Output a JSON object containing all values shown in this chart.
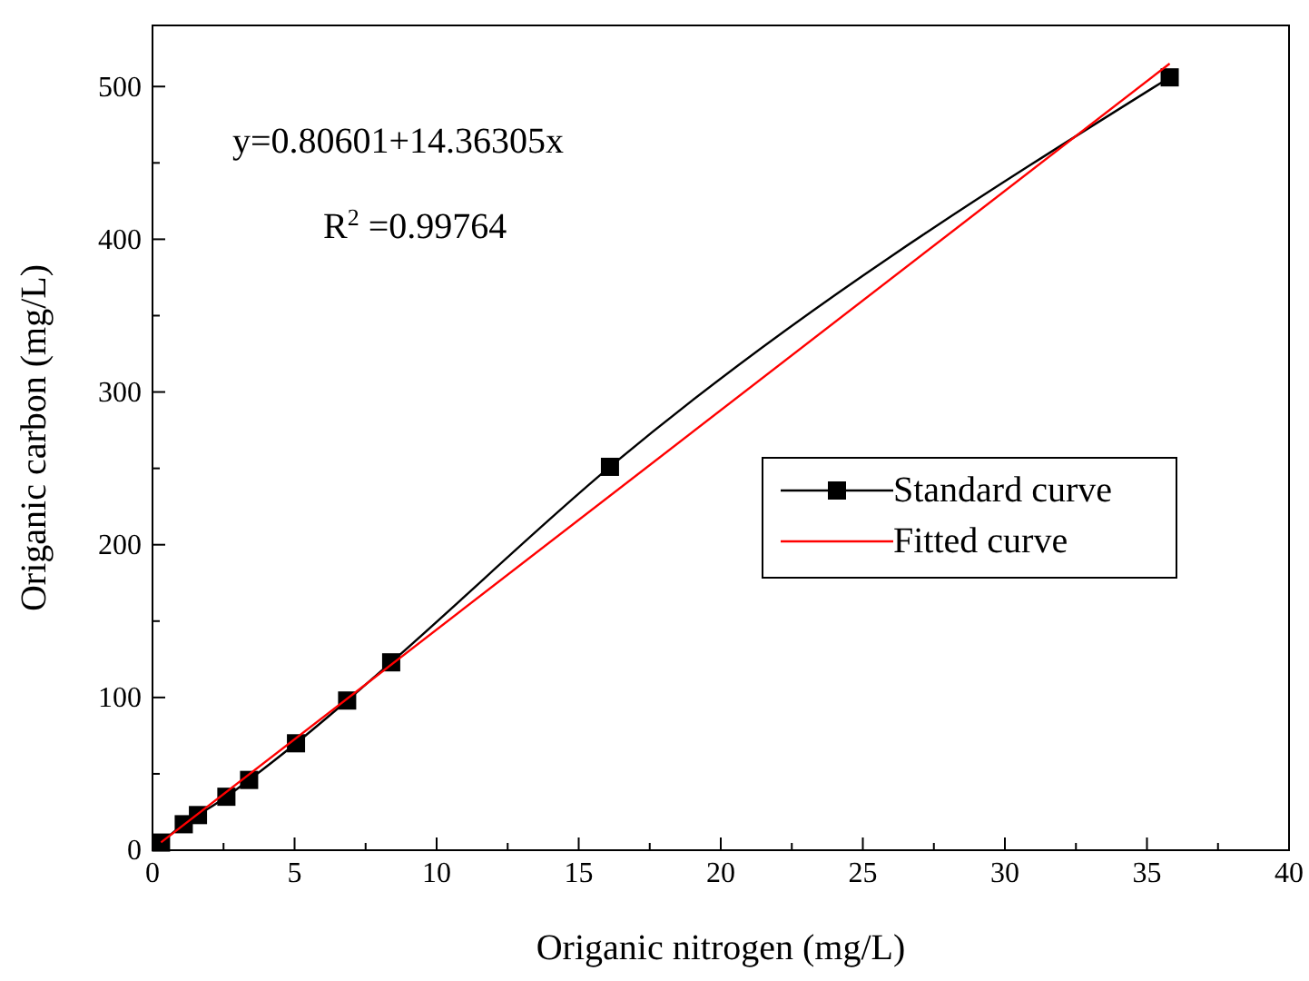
{
  "chart_data": {
    "type": "line",
    "xlabel": "Origanic nitrogen (mg/L)",
    "ylabel": "Origanic carbon (mg/L)",
    "xlim": [
      0,
      40
    ],
    "xticks": [
      0,
      5,
      10,
      15,
      20,
      25,
      30,
      35,
      40
    ],
    "ylim": [
      0,
      540
    ],
    "yticks": [
      0,
      100,
      200,
      300,
      400,
      500
    ],
    "series": [
      {
        "name": "Standard curve",
        "color": "#000000",
        "marker": "square",
        "x": [
          0.3,
          1.1,
          1.6,
          2.6,
          3.4,
          5.05,
          6.85,
          8.4,
          16.1,
          35.8
        ],
        "values": [
          5,
          17,
          23,
          35,
          46,
          70,
          98,
          123,
          251,
          506
        ]
      },
      {
        "name": "Fitted curve",
        "color": "#ff0000",
        "marker": "none",
        "x": [
          0.3,
          35.8
        ],
        "values": [
          5.1,
          515
        ]
      }
    ],
    "annotations": [
      "y=0.80601+14.36305x",
      "R$^{2}$ =0.99764"
    ],
    "legend": "right",
    "grid": false
  }
}
